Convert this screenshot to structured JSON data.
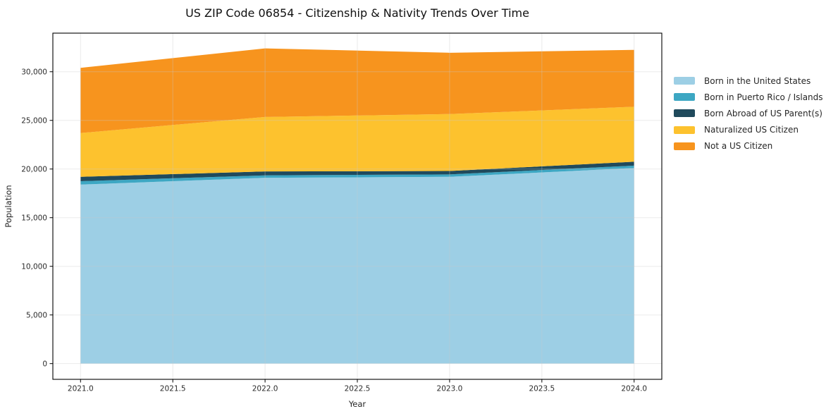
{
  "chart_data": {
    "type": "area",
    "stacked": true,
    "title": "US ZIP Code 06854 - Citizenship & Nativity Trends Over Time",
    "xlabel": "Year",
    "ylabel": "Population",
    "x": [
      2021,
      2022,
      2023,
      2024
    ],
    "series": [
      {
        "name": "Born in the United States",
        "color": "#9DCFE5",
        "values": [
          18400,
          19100,
          19200,
          20100
        ]
      },
      {
        "name": "Born in Puerto Rico / Islands",
        "color": "#3DA7C3",
        "values": [
          350,
          250,
          250,
          250
        ]
      },
      {
        "name": "Born Abroad of US Parent(s)",
        "color": "#204A5C",
        "values": [
          450,
          400,
          350,
          400
        ]
      },
      {
        "name": "Naturalized US Citizen",
        "color": "#FDC22E",
        "values": [
          4500,
          5600,
          5850,
          5650
        ]
      },
      {
        "name": "Not a US Citizen",
        "color": "#F7941E",
        "values": [
          6700,
          7050,
          6300,
          5850
        ]
      }
    ],
    "xticks": [
      2021.0,
      2021.5,
      2022.0,
      2022.5,
      2023.0,
      2023.5,
      2024.0
    ],
    "xtick_labels": [
      "2021.0",
      "2021.5",
      "2022.0",
      "2022.5",
      "2023.0",
      "2023.5",
      "2024.0"
    ],
    "yticks": [
      0,
      5000,
      10000,
      15000,
      20000,
      25000,
      30000
    ],
    "ytick_labels": [
      "0",
      "5,000",
      "10,000",
      "15,000",
      "20,000",
      "25,000",
      "30,000"
    ],
    "xlim": [
      2020.85,
      2024.15
    ],
    "ylim": [
      -1618,
      33968
    ],
    "grid": true,
    "legend_position": "right",
    "frame_color": "#000000",
    "grid_color": "#c9c9c9",
    "background": "#ffffff"
  }
}
